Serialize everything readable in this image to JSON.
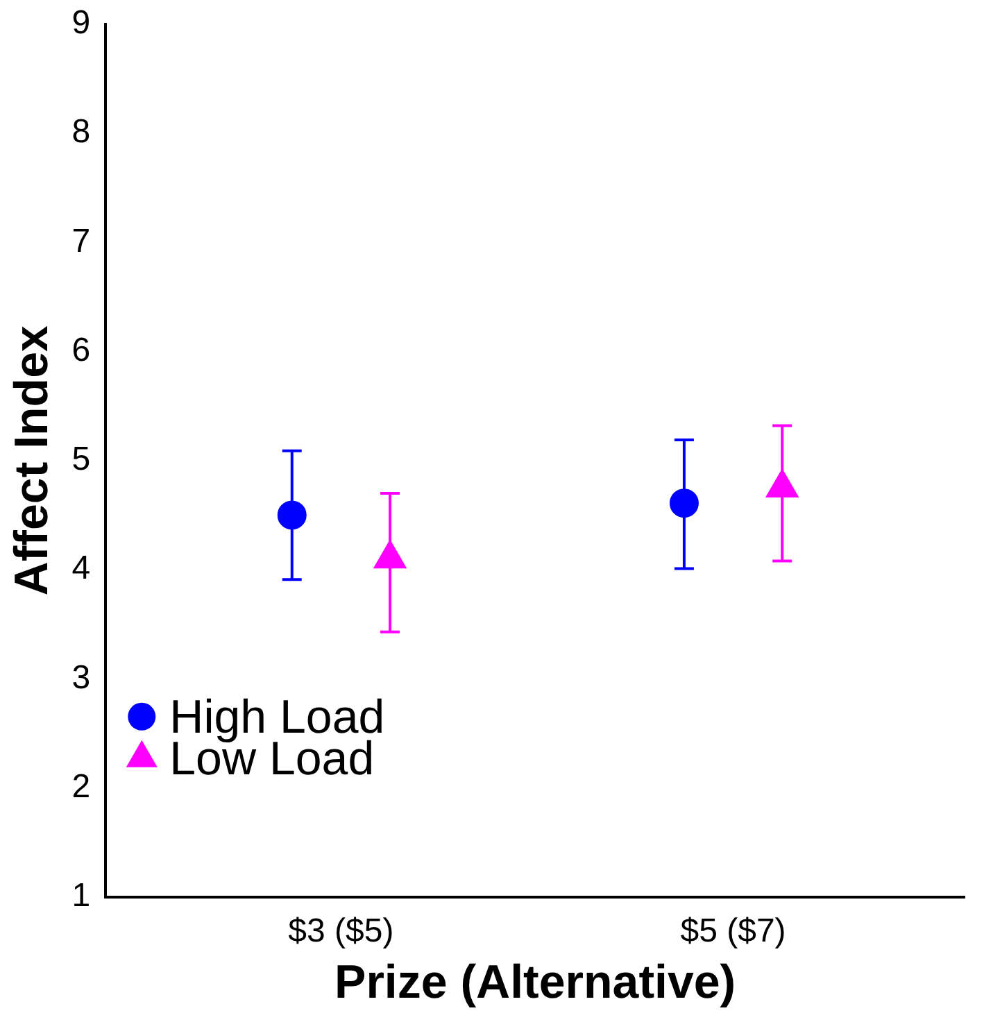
{
  "chart_data": {
    "type": "scatter",
    "xlabel": "Prize (Alternative)",
    "ylabel": "Affect Index",
    "categories": [
      "$3 ($5)",
      "$5 ($7)"
    ],
    "ylim": [
      1,
      9
    ],
    "yticks": [
      1,
      2,
      3,
      4,
      5,
      6,
      7,
      8,
      9
    ],
    "grid": false,
    "legend": "bottom left",
    "series": [
      {
        "name": "High Load",
        "color": "#0000ff",
        "marker": "circle",
        "values": [
          4.5,
          4.61
        ],
        "errors": [
          [
            3.91,
            5.09
          ],
          [
            4.01,
            5.19
          ]
        ]
      },
      {
        "name": "Low Load",
        "color": "#ff00ff",
        "marker": "triangle",
        "values": [
          4.1,
          4.75
        ],
        "errors": [
          [
            3.43,
            4.7
          ],
          [
            4.08,
            5.32
          ]
        ]
      }
    ]
  }
}
